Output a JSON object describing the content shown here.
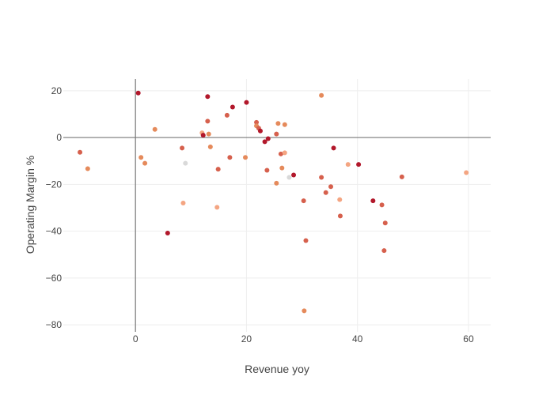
{
  "chart_data": {
    "type": "scatter",
    "title": "",
    "xlabel": "Revenue yoy",
    "ylabel": "Operating Margin %",
    "xlim": [
      -13,
      64
    ],
    "ylim": [
      -83,
      25
    ],
    "xticks": [
      0,
      20,
      40,
      60
    ],
    "yticks": [
      20,
      0,
      -20,
      -40,
      -60,
      -80
    ],
    "xtick_labels": [
      "0",
      "20",
      "40",
      "60"
    ],
    "ytick_labels": [
      "20",
      "0",
      "−20",
      "−40",
      "−60",
      "−80"
    ],
    "grid": true,
    "zero_lines": true,
    "legend": "none",
    "colors": {
      "dark_red": "#b2182b",
      "red": "#d6604d",
      "orange": "#e58a5b",
      "peach": "#f4a582",
      "light_gray": "#d9d9d9",
      "axis": "#444444",
      "zero_line": "#777777",
      "grid": "#eeeeee"
    },
    "points": [
      {
        "x": 0.5,
        "y": 19,
        "color": "dark_red"
      },
      {
        "x": 13,
        "y": 17.5,
        "color": "dark_red"
      },
      {
        "x": 17.5,
        "y": 13,
        "color": "dark_red"
      },
      {
        "x": 20,
        "y": 15,
        "color": "dark_red"
      },
      {
        "x": 33.5,
        "y": 18,
        "color": "orange"
      },
      {
        "x": 16.5,
        "y": 9.5,
        "color": "red"
      },
      {
        "x": 13,
        "y": 7,
        "color": "red"
      },
      {
        "x": 3.5,
        "y": 3.5,
        "color": "orange"
      },
      {
        "x": 12,
        "y": 2,
        "color": "peach"
      },
      {
        "x": 12.2,
        "y": 1,
        "color": "dark_red"
      },
      {
        "x": 13.2,
        "y": 1.5,
        "color": "orange"
      },
      {
        "x": 21.8,
        "y": 6.5,
        "color": "red"
      },
      {
        "x": 21.8,
        "y": 5,
        "color": "orange"
      },
      {
        "x": 22.2,
        "y": 4,
        "color": "red"
      },
      {
        "x": 22.5,
        "y": 2.8,
        "color": "dark_red"
      },
      {
        "x": 25.7,
        "y": 6,
        "color": "orange"
      },
      {
        "x": 26.9,
        "y": 5.5,
        "color": "orange"
      },
      {
        "x": 25.4,
        "y": 1.5,
        "color": "red"
      },
      {
        "x": 23.9,
        "y": -0.5,
        "color": "dark_red"
      },
      {
        "x": 23.3,
        "y": -1.8,
        "color": "dark_red"
      },
      {
        "x": 13.5,
        "y": -4,
        "color": "orange"
      },
      {
        "x": 8.4,
        "y": -4.5,
        "color": "red"
      },
      {
        "x": 35.7,
        "y": -4.5,
        "color": "dark_red"
      },
      {
        "x": 26.2,
        "y": -7,
        "color": "red"
      },
      {
        "x": 26.9,
        "y": -6.5,
        "color": "peach"
      },
      {
        "x": -10,
        "y": -6.3,
        "color": "red"
      },
      {
        "x": 1,
        "y": -8.5,
        "color": "orange"
      },
      {
        "x": 17,
        "y": -8.5,
        "color": "red"
      },
      {
        "x": 19.8,
        "y": -8.5,
        "color": "orange"
      },
      {
        "x": 1.7,
        "y": -11,
        "color": "orange"
      },
      {
        "x": 9,
        "y": -11,
        "color": "light_gray"
      },
      {
        "x": 38.3,
        "y": -11.5,
        "color": "peach"
      },
      {
        "x": 40.2,
        "y": -11.5,
        "color": "dark_red"
      },
      {
        "x": -8.6,
        "y": -13.3,
        "color": "orange"
      },
      {
        "x": 14.9,
        "y": -13.5,
        "color": "red"
      },
      {
        "x": 23.7,
        "y": -14,
        "color": "red"
      },
      {
        "x": 26.4,
        "y": -13,
        "color": "orange"
      },
      {
        "x": 28.5,
        "y": -16,
        "color": "dark_red"
      },
      {
        "x": 27.7,
        "y": -17,
        "color": "light_gray"
      },
      {
        "x": 33.5,
        "y": -17,
        "color": "red"
      },
      {
        "x": 48,
        "y": -16.8,
        "color": "red"
      },
      {
        "x": 59.6,
        "y": -15,
        "color": "peach"
      },
      {
        "x": 25.4,
        "y": -19.5,
        "color": "orange"
      },
      {
        "x": 35.2,
        "y": -21,
        "color": "red"
      },
      {
        "x": 34.3,
        "y": -23.5,
        "color": "red"
      },
      {
        "x": 36.8,
        "y": -26.5,
        "color": "peach"
      },
      {
        "x": 30.3,
        "y": -27,
        "color": "red"
      },
      {
        "x": 42.8,
        "y": -27,
        "color": "dark_red"
      },
      {
        "x": 8.6,
        "y": -28,
        "color": "peach"
      },
      {
        "x": 44.4,
        "y": -28.8,
        "color": "red"
      },
      {
        "x": 14.7,
        "y": -29.8,
        "color": "peach"
      },
      {
        "x": 36.9,
        "y": -33.5,
        "color": "red"
      },
      {
        "x": 45,
        "y": -36.5,
        "color": "red"
      },
      {
        "x": 5.8,
        "y": -40.8,
        "color": "dark_red"
      },
      {
        "x": 30.7,
        "y": -44,
        "color": "red"
      },
      {
        "x": 44.8,
        "y": -48.3,
        "color": "red"
      },
      {
        "x": 30.4,
        "y": -74,
        "color": "orange"
      }
    ]
  }
}
